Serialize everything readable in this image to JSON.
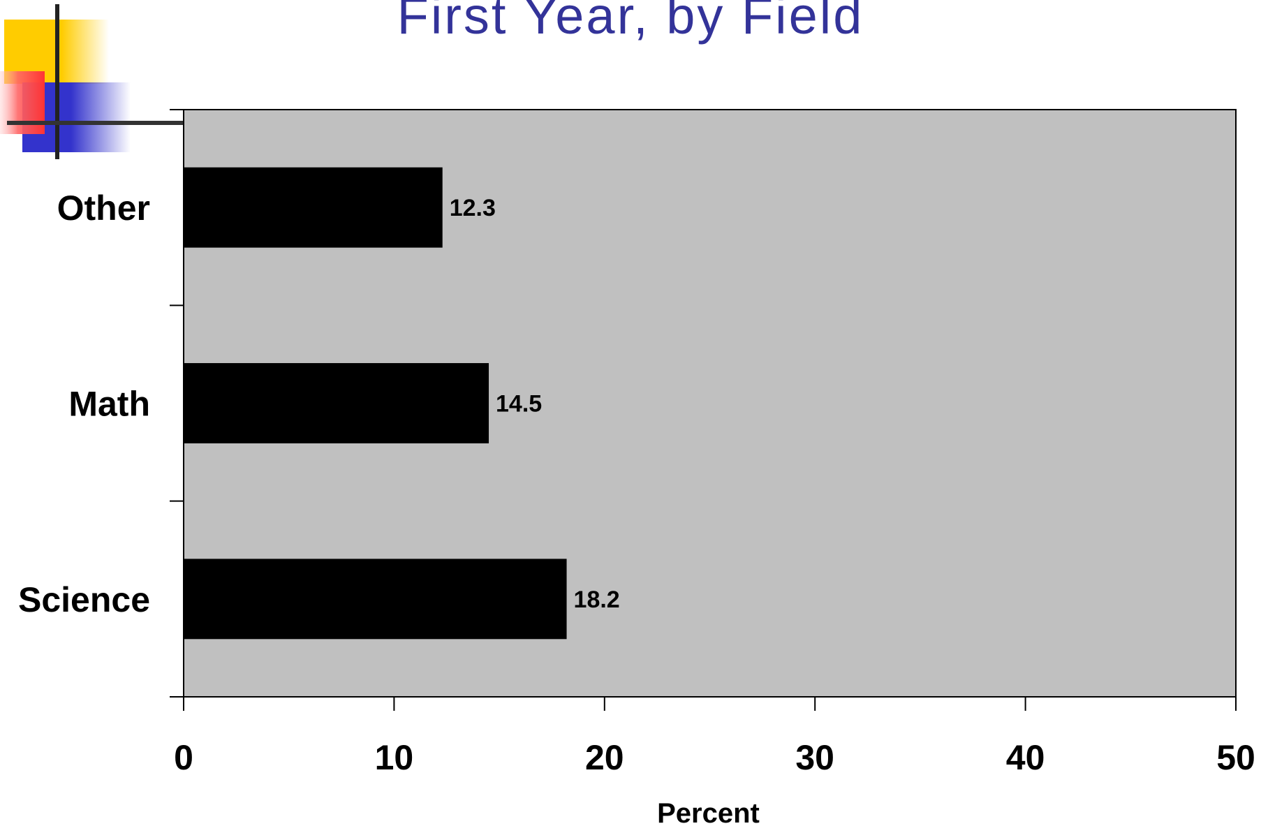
{
  "slide": {
    "title": "First Year, by Field"
  },
  "colors": {
    "title": "#333399",
    "plot_background": "#c0c0c0",
    "bar": "#000000",
    "deco_yellow": "#ffcc00",
    "deco_red": "#ff3333",
    "deco_blue": "#3333cc"
  },
  "chart_data": {
    "type": "bar",
    "orientation": "horizontal",
    "categories": [
      "Other",
      "Math",
      "Science"
    ],
    "values": [
      12.3,
      14.5,
      18.2
    ],
    "data_labels": [
      "12.3",
      "14.5",
      "18.2"
    ],
    "title": "First Year, by Field",
    "xlabel": "Percent",
    "ylabel": "",
    "xlim": [
      0,
      50
    ],
    "xticks": [
      0,
      10,
      20,
      30,
      40,
      50
    ],
    "xtick_labels": [
      "0",
      "10",
      "20",
      "30",
      "40",
      "50"
    ],
    "grid": false,
    "legend": "none"
  }
}
